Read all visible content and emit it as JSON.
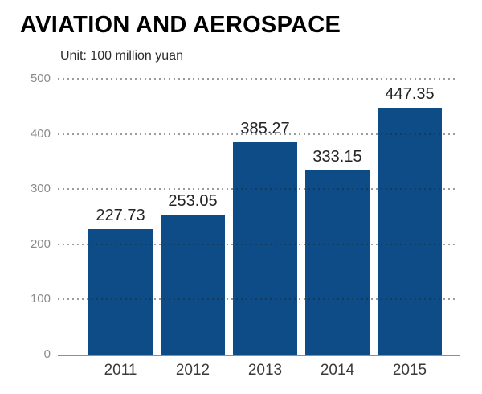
{
  "chart": {
    "title": "AVIATION AND AEROSPACE",
    "unit": "Unit: 100 million yuan"
  },
  "chart_data": {
    "type": "bar",
    "title": "AVIATION AND AEROSPACE",
    "subtitle": "Unit: 100 million yuan",
    "categories": [
      "2011",
      "2012",
      "2013",
      "2014",
      "2015"
    ],
    "values": [
      227.73,
      253.05,
      385.27,
      333.15,
      447.35
    ],
    "value_labels": [
      "227.73",
      "253.05",
      "385.27",
      "333.15",
      "447.35"
    ],
    "xlabel": "",
    "ylabel": "",
    "ylim": [
      0,
      500
    ],
    "yticks": [
      0,
      100,
      200,
      300,
      400,
      500
    ],
    "ytick_labels": [
      "0",
      "100",
      "200",
      "300",
      "400",
      "500"
    ],
    "grid": "horizontal dotted, drawn over bars",
    "legend": "none",
    "colors": {
      "bar": "#0d4c86",
      "grid": "rgba(35,35,35,0.45)",
      "axis": "#8f8f8f",
      "title": "#000000",
      "tick_label": "#8a8a8a",
      "value_label": "#232323"
    }
  }
}
